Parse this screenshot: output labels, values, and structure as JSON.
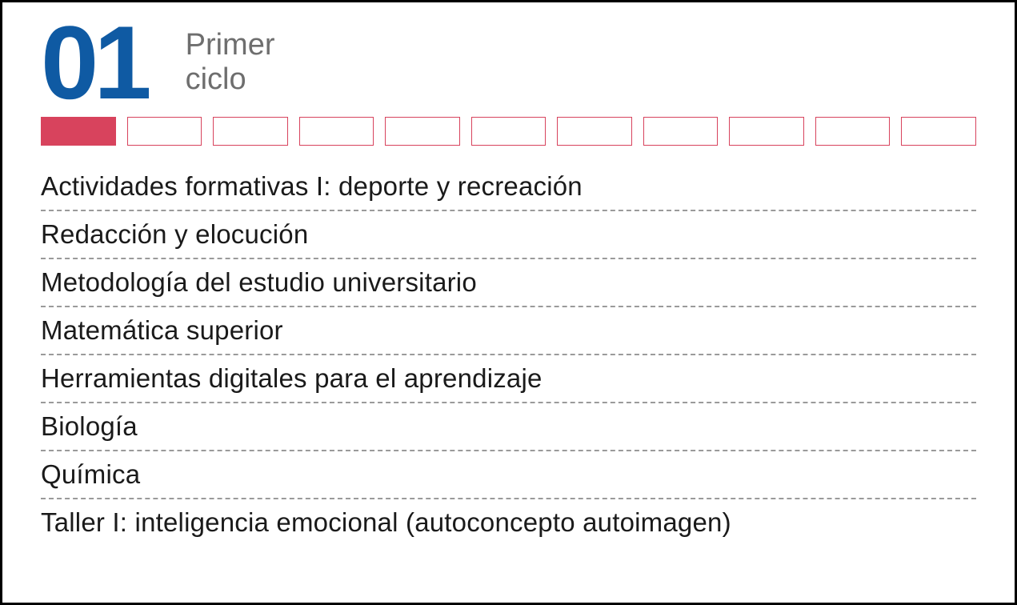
{
  "colors": {
    "number": "#0f5aa3",
    "title": "#6e6e6e",
    "course_text": "#1a1a1a",
    "divider": "#9a9a9a",
    "border": "#000000",
    "background": "#ffffff",
    "progress_filled": "#d8435d",
    "progress_outline": "#d8435d"
  },
  "cycle": {
    "number": "01",
    "title_line1": "Primer",
    "title_line2": "ciclo"
  },
  "progress": {
    "total_boxes": 11,
    "filled_index": 0
  },
  "courses": [
    "Actividades formativas I: deporte y recreación",
    "Redacción y elocución",
    "Metodología del estudio universitario",
    "Matemática superior",
    "Herramientas digitales para el aprendizaje",
    "Biología",
    "Química",
    "Taller I: inteligencia emocional (autoconcepto autoimagen)"
  ]
}
